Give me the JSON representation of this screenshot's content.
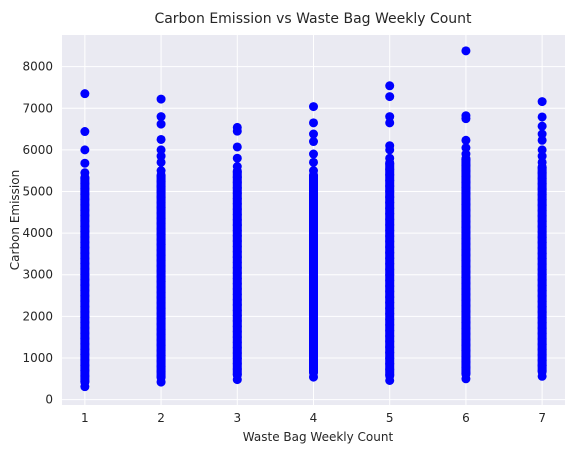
{
  "chart_data": {
    "type": "scatter",
    "title": "Carbon Emission vs Waste Bag Weekly Count",
    "xlabel": "Waste Bag Weekly Count",
    "ylabel": "Carbon Emission",
    "x_ticks": [
      1,
      2,
      3,
      4,
      5,
      6,
      7
    ],
    "y_ticks": [
      0,
      1000,
      2000,
      3000,
      4000,
      5000,
      6000,
      7000,
      8000
    ],
    "xlim": [
      0.7,
      7.3
    ],
    "ylim": [
      -130,
      8760
    ],
    "grid": true,
    "colors": {
      "points": "#0000ff",
      "plot_background": "#eaeaf2",
      "grid": "#ffffff"
    },
    "series": [
      {
        "x": 1,
        "range": [
          310,
          5450
        ],
        "outliers": [
          5680,
          6000,
          6440,
          7350
        ]
      },
      {
        "x": 2,
        "range": [
          420,
          5500
        ],
        "outliers": [
          5700,
          5850,
          6000,
          6250,
          6620,
          6800,
          7220
        ]
      },
      {
        "x": 3,
        "range": [
          480,
          5600
        ],
        "outliers": [
          5800,
          6070,
          6450,
          6540
        ]
      },
      {
        "x": 4,
        "range": [
          540,
          5500
        ],
        "outliers": [
          5700,
          5900,
          6200,
          6380,
          6650,
          7040
        ]
      },
      {
        "x": 5,
        "range": [
          460,
          5800
        ],
        "outliers": [
          6000,
          6100,
          6650,
          6800,
          7280,
          7540
        ]
      },
      {
        "x": 6,
        "range": [
          500,
          5900
        ],
        "outliers": [
          6050,
          6230,
          6750,
          6820,
          8380
        ]
      },
      {
        "x": 7,
        "range": [
          560,
          5700
        ],
        "outliers": [
          5850,
          6000,
          6230,
          6380,
          6570,
          6790,
          7160
        ]
      }
    ]
  }
}
